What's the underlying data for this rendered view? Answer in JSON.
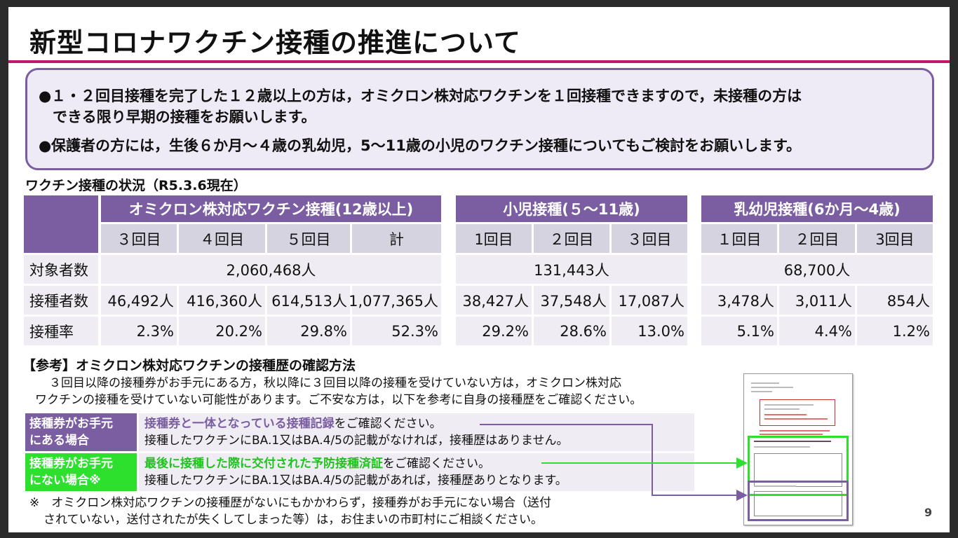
{
  "title": "新型コロナワクチン接種の推進について",
  "summary": {
    "bullet_symbol": "●",
    "bullet1_line1": "１・２回目接種を完了した１２歳以上の方は，オミクロン株対応ワクチンを１回接種できますので，未接種の方は",
    "bullet1_line2": "できる限り早期の接種をお願いします。",
    "bullet2": "保護者の方には，生後６か月～４歳の乳幼児，5～11歳の小児のワクチン接種についてもご検討をお願いします。"
  },
  "status_heading": "ワクチン接種の状況（R5.3.6現在）",
  "table": {
    "groups": [
      {
        "name": "オミクロン株対応ワクチン接種(12歳以上)",
        "doses": [
          "３回目",
          "４回目",
          "５回目",
          "計"
        ],
        "target": "2,060,468人",
        "vaccinated": [
          "46,492人",
          "416,360人",
          "614,513人",
          "1,077,365人"
        ],
        "rate": [
          "2.3%",
          "20.2%",
          "29.8%",
          "52.3%"
        ]
      },
      {
        "name": "小児接種(５～11歳)",
        "doses": [
          "1回目",
          "２回目",
          "３回目"
        ],
        "target": "131,443人",
        "vaccinated": [
          "38,427人",
          "37,548人",
          "17,087人"
        ],
        "rate": [
          "29.2%",
          "28.6%",
          "13.0%"
        ]
      },
      {
        "name": "乳幼児接種(6か月～4歳)",
        "doses": [
          "１回目",
          "２回目",
          "3回目"
        ],
        "target": "68,700人",
        "vaccinated": [
          "3,478人",
          "3,011人",
          "854人"
        ],
        "rate": [
          "5.1%",
          "4.4%",
          "1.2%"
        ]
      }
    ],
    "row_labels": [
      "対象者数",
      "接種者数",
      "接種率"
    ]
  },
  "reference": {
    "heading": "【参考】オミクロン株対応ワクチンの接種歴の確認方法",
    "body_line1": "３回目以降の接種券がお手元にある方，秋以降に３回目以降の接種を受けていない方は，オミクロン株対応",
    "body_line2": "ワクチンの接種を受けていない可能性があります。ご不安な方は，以下を参考に自身の接種歴をご確認ください。",
    "case1": {
      "tag_line1": "接種券がお手元",
      "tag_line2": "にある場合",
      "highlight": "接種券と一体となっている接種記録",
      "rest": "をご確認ください。",
      "line2": "接種したワクチンにBA.1又はBA.4/5の記載がなければ，接種歴はありません。"
    },
    "case2": {
      "tag_line1": "接種券がお手元",
      "tag_line2": "にない場合※",
      "highlight": "最後に接種した際に交付された予防接種済証",
      "rest": "をご確認ください。",
      "line2": "接種したワクチンにBA.1又はBA.4/5の記載があれば，接種歴ありとなります。"
    },
    "note_line1": "※　オミクロン株対応ワクチンの接種歴がないにもかかわらず，接種券がお手元にない場合（送付",
    "note_line2": "されていない，送付されたが失くしてしまった等）は，お住まいの市町村にご相談ください。"
  },
  "page_number": "9",
  "colors": {
    "accent_purple": "#7b5ea1",
    "accent_green": "#2ee02e",
    "rule_magenta": "#c2186b"
  }
}
